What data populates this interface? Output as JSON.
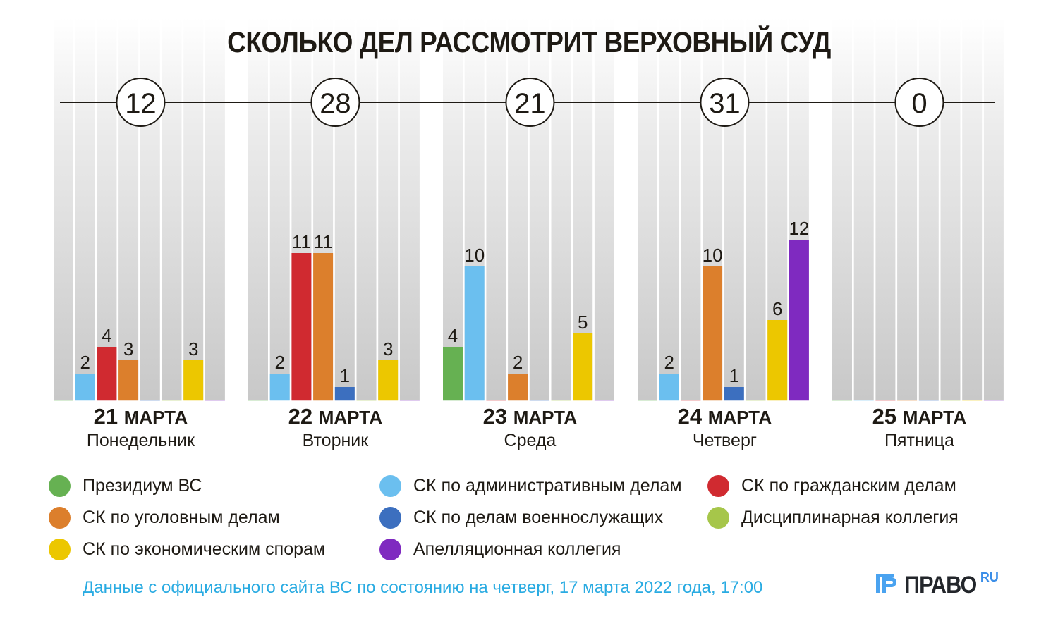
{
  "chart_data": {
    "type": "bar",
    "title": "СКОЛЬКО ДЕЛ РАССМОТРИТ ВЕРХОВНЫЙ СУД",
    "xlabel": "",
    "ylabel": "",
    "ylim": [
      0,
      12
    ],
    "grid": false,
    "legend_position": "bottom",
    "categories": [
      {
        "date_num": "21",
        "date_month": "МАРТА",
        "weekday": "Понедельник",
        "total": "12"
      },
      {
        "date_num": "22",
        "date_month": "МАРТА",
        "weekday": "Вторник",
        "total": "28"
      },
      {
        "date_num": "23",
        "date_month": "МАРТА",
        "weekday": "Среда",
        "total": "21"
      },
      {
        "date_num": "24",
        "date_month": "МАРТА",
        "weekday": "Четверг",
        "total": "31"
      },
      {
        "date_num": "25",
        "date_month": "МАРТА",
        "weekday": "Пятница",
        "total": "0"
      }
    ],
    "series": [
      {
        "name": "Президиум ВС",
        "color": "#66b152",
        "values": [
          0,
          0,
          4,
          0,
          0
        ]
      },
      {
        "name": "СК по административным делам",
        "color": "#6bbfef",
        "values": [
          2,
          2,
          10,
          2,
          0
        ]
      },
      {
        "name": "СК по гражданским делам",
        "color": "#d02a30",
        "values": [
          4,
          11,
          0,
          0,
          0
        ]
      },
      {
        "name": "СК по уголовным делам",
        "color": "#dc7f2c",
        "values": [
          3,
          11,
          2,
          10,
          0
        ]
      },
      {
        "name": "СК по делам военнослужащих",
        "color": "#3c6fbf",
        "values": [
          0,
          1,
          0,
          1,
          0
        ]
      },
      {
        "name": "Дисциплинарная коллегия",
        "color": "#a6c64a",
        "values": [
          0,
          0,
          0,
          0,
          0
        ]
      },
      {
        "name": "СК по экономическим спорам",
        "color": "#ecc700",
        "values": [
          3,
          3,
          5,
          6,
          0
        ]
      },
      {
        "name": "Апелляционная коллегия",
        "color": "#7f2ac0",
        "values": [
          0,
          0,
          0,
          12,
          0
        ]
      }
    ]
  },
  "legend_layout": [
    [
      0,
      3,
      6
    ],
    [
      1,
      4,
      7
    ],
    [
      2,
      5
    ]
  ],
  "footer": {
    "source": "Данные с официального сайта ВС по состоянию на четверг, 17 марта 2022 года, 17:00",
    "logo_text": "ПРАВО",
    "logo_suffix": "RU",
    "logo_accent": "#4aa3f0"
  }
}
